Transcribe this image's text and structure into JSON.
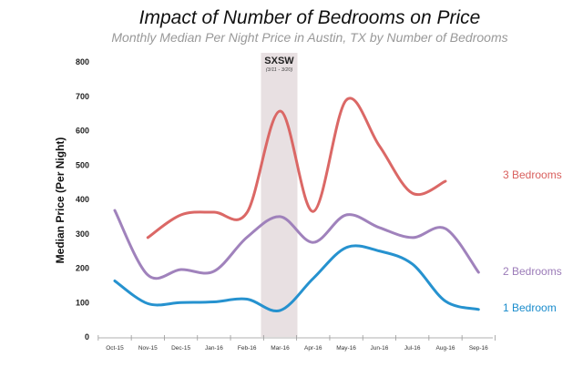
{
  "chart_data": {
    "type": "line",
    "title": "Impact of Number of Bedrooms on Price",
    "subtitle": "Monthly Median Per Night Price in Austin, TX by Number of Bedrooms",
    "xlabel": "",
    "ylabel": "Median Price (Per Night)",
    "ylim": [
      0,
      800
    ],
    "yticks": [
      "0",
      "100",
      "200",
      "300",
      "400",
      "500",
      "600",
      "700",
      "800"
    ],
    "categories": [
      "Oct-15",
      "Nov-15",
      "Dec-15",
      "Jan-16",
      "Feb-16",
      "Mar-16",
      "Apr-16",
      "May-16",
      "Jun-16",
      "Jul-16",
      "Aug-16",
      "Sep-16"
    ],
    "grid": false,
    "smooth": true,
    "annotation": {
      "label": "SXSW",
      "sublabel": "(3/11 - 3/20)",
      "category": "Mar-16",
      "color": "#e8e0e2"
    },
    "series": [
      {
        "name": "3 Bedrooms",
        "color": "#d9605e",
        "values": [
          null,
          289,
          355,
          363,
          362,
          657,
          365,
          689,
          556,
          418,
          453,
          null
        ]
      },
      {
        "name": "2 Bedrooms",
        "color": "#9b7bb8",
        "values": [
          368,
          180,
          196,
          191,
          290,
          350,
          275,
          355,
          318,
          289,
          315,
          188
        ]
      },
      {
        "name": "1 Bedroom",
        "color": "#1a8ccc",
        "values": [
          163,
          97,
          100,
          102,
          110,
          77,
          170,
          260,
          250,
          212,
          104,
          80
        ]
      }
    ]
  }
}
